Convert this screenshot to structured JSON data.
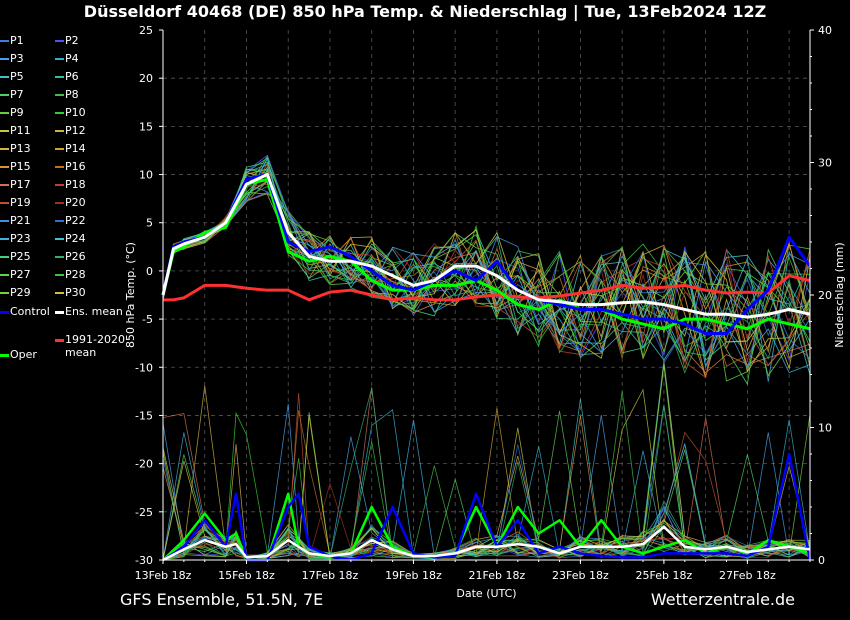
{
  "title": "Düsseldorf 40468 (DE)  850 hPa Temp. & Niederschlag | Tue, 13Feb2024 12Z",
  "footer_left": "GFS Ensemble, 51.5N, 7E",
  "footer_right": "Wetterzentrale.de",
  "colors": {
    "background": "#000000",
    "control": "#0000ff",
    "ens_mean": "#ffffff",
    "climate_mean": "#ff3030",
    "oper": "#00ff00"
  },
  "legend": [
    {
      "label": "P1",
      "color": "#3f7fd8"
    },
    {
      "label": "P2",
      "color": "#5050ff"
    },
    {
      "label": "P3",
      "color": "#4aa0e8"
    },
    {
      "label": "P4",
      "color": "#30b0d0"
    },
    {
      "label": "P5",
      "color": "#40c0c0"
    },
    {
      "label": "P6",
      "color": "#30c0a0"
    },
    {
      "label": "P7",
      "color": "#50d060"
    },
    {
      "label": "P8",
      "color": "#40c040"
    },
    {
      "label": "P9",
      "color": "#60d040"
    },
    {
      "label": "P10",
      "color": "#30d030"
    },
    {
      "label": "P11",
      "color": "#c8c840"
    },
    {
      "label": "P12",
      "color": "#d0b040"
    },
    {
      "label": "P13",
      "color": "#d8b050"
    },
    {
      "label": "P14",
      "color": "#d0a030"
    },
    {
      "label": "P15",
      "color": "#d89040"
    },
    {
      "label": "P16",
      "color": "#c07020"
    },
    {
      "label": "P17",
      "color": "#d07050"
    },
    {
      "label": "P18",
      "color": "#c04030"
    },
    {
      "label": "P19",
      "color": "#c05030"
    },
    {
      "label": "P20",
      "color": "#a03020"
    },
    {
      "label": "P21",
      "color": "#4090e0"
    },
    {
      "label": "P22",
      "color": "#3070d0"
    },
    {
      "label": "P23",
      "color": "#40b0e0"
    },
    {
      "label": "P24",
      "color": "#40c0d0"
    },
    {
      "label": "P25",
      "color": "#40d080"
    },
    {
      "label": "P26",
      "color": "#30b070"
    },
    {
      "label": "P27",
      "color": "#60d050"
    },
    {
      "label": "P28",
      "color": "#40c040"
    },
    {
      "label": "P29",
      "color": "#70d040"
    },
    {
      "label": "P30",
      "color": "#d0c040"
    },
    {
      "label": "Control",
      "color": "#0000ff"
    },
    {
      "label": "Ens. mean",
      "color": "#ffffff"
    },
    {
      "label": "1991-2020 mean",
      "color": "#ff3030"
    },
    {
      "label": "Oper",
      "color": "#00ff00"
    }
  ],
  "chart_data": {
    "type": "line",
    "title": "Düsseldorf 40468 (DE)  850 hPa Temp. & Niederschlag | Tue, 13Feb2024 12Z",
    "xlabel": "Date (UTC)",
    "ylabel": "850 hPa Temp. (°C)",
    "y2label": "Niederschlag (mm)",
    "x_ticks": [
      "13Feb 18z",
      "15Feb 18z",
      "17Feb 18z",
      "19Feb 18z",
      "21Feb 18z",
      "23Feb 18z",
      "25Feb 18z",
      "27Feb 18z"
    ],
    "x_range_days": [
      0,
      15.5
    ],
    "ylim": [
      -30,
      25
    ],
    "yticks": [
      25,
      20,
      15,
      10,
      5,
      0,
      -5,
      -10,
      -15,
      -20,
      -25,
      -30
    ],
    "y2lim": [
      0,
      40
    ],
    "y2ticks": [
      40,
      30,
      20,
      10,
      0
    ],
    "grid": true,
    "legend_position": "left outside",
    "series": [
      {
        "name": "Control",
        "axis": "temp",
        "color": "#0000ff",
        "x": [
          0,
          0.25,
          0.5,
          1,
          1.5,
          2,
          2.5,
          3,
          3.5,
          4,
          4.5,
          5,
          5.5,
          6,
          6.5,
          7,
          7.5,
          8,
          8.5,
          9,
          9.5,
          10,
          10.5,
          11,
          11.5,
          12,
          12.5,
          13,
          13.5,
          14,
          14.5,
          15,
          15.5
        ],
        "values": [
          -2.5,
          2.5,
          3,
          3.5,
          5,
          9.5,
          10,
          3,
          2,
          2.5,
          1.5,
          0,
          -1.5,
          -2,
          -1,
          0,
          -1,
          1,
          -2,
          -3,
          -3.5,
          -4,
          -4,
          -4.5,
          -5,
          -5,
          -5.5,
          -6.5,
          -6.5,
          -4,
          -2,
          3.5,
          0.5
        ]
      },
      {
        "name": "Ens. mean",
        "axis": "temp",
        "color": "#ffffff",
        "x": [
          0,
          0.25,
          0.5,
          1,
          1.5,
          2,
          2.5,
          3,
          3.5,
          4,
          4.5,
          5,
          5.5,
          6,
          6.5,
          7,
          7.5,
          8,
          8.5,
          9,
          9.5,
          10,
          10.5,
          11,
          11.5,
          12,
          12.5,
          13,
          13.5,
          14,
          14.5,
          15,
          15.5
        ],
        "values": [
          -2.5,
          2.3,
          2.8,
          3.5,
          5,
          9,
          10,
          4,
          1.5,
          1,
          1,
          0.5,
          -0.5,
          -1.5,
          -1,
          0.5,
          0.5,
          -0.5,
          -2,
          -3,
          -3.2,
          -3.5,
          -3.5,
          -3.3,
          -3.2,
          -3.5,
          -4,
          -4.5,
          -4.5,
          -4.8,
          -4.5,
          -4,
          -4.5
        ]
      },
      {
        "name": "1991-2020 mean",
        "axis": "temp",
        "color": "#ff3030",
        "x": [
          0,
          0.25,
          0.5,
          1,
          1.5,
          2,
          2.5,
          3,
          3.5,
          4,
          4.5,
          5,
          5.5,
          6,
          6.5,
          7,
          7.5,
          8,
          8.5,
          9,
          9.5,
          10,
          10.5,
          11,
          11.5,
          12,
          12.5,
          13,
          13.5,
          14,
          14.5,
          15,
          15.5
        ],
        "values": [
          -3,
          -3,
          -2.8,
          -1.5,
          -1.5,
          -1.8,
          -2,
          -2,
          -3,
          -2.2,
          -2,
          -2.5,
          -3,
          -2.8,
          -3,
          -3,
          -2.7,
          -2.5,
          -2.7,
          -2.8,
          -2.6,
          -2.3,
          -2,
          -1.5,
          -1.8,
          -1.7,
          -1.5,
          -2,
          -2.3,
          -2.2,
          -2.3,
          -0.5,
          -1
        ]
      },
      {
        "name": "Oper",
        "axis": "temp",
        "color": "#00ff00",
        "x": [
          0,
          0.25,
          0.5,
          1,
          1.5,
          2,
          2.5,
          3,
          3.5,
          4,
          4.5,
          5,
          5.5,
          6,
          6.5,
          7,
          7.5,
          8,
          8.5,
          9,
          9.5,
          10,
          10.5,
          11,
          11.5,
          12,
          12.5,
          13,
          13.5,
          14,
          14.5,
          15,
          15.5
        ],
        "values": [
          -2.5,
          2,
          2.5,
          4,
          4.5,
          9,
          9.5,
          2,
          1,
          1.5,
          1,
          -1,
          -2,
          -2,
          -1.5,
          -1.5,
          -1,
          -2,
          -3.5,
          -4,
          -3,
          -4,
          -4,
          -5,
          -5.5,
          -6,
          -5,
          -5,
          -5.5,
          -6,
          -5,
          -5.5,
          -6
        ]
      },
      {
        "name": "Control",
        "axis": "precip",
        "color": "#0000ff",
        "x": [
          0,
          0.5,
          1,
          1.5,
          1.75,
          2,
          2.5,
          3,
          3.25,
          3.5,
          4,
          4.5,
          5,
          5.5,
          6,
          6.5,
          7,
          7.5,
          8,
          8.5,
          9,
          9.5,
          10,
          10.5,
          11,
          11.5,
          12,
          12.5,
          13,
          13.5,
          14,
          14.5,
          15,
          15.5
        ],
        "values": [
          0,
          1,
          3,
          1,
          5,
          0,
          0,
          4,
          5,
          1,
          0.3,
          0,
          0.5,
          4,
          0.5,
          0.2,
          0.3,
          5,
          1,
          3,
          0.5,
          1,
          0.5,
          0.3,
          0.2,
          0.2,
          0.5,
          0.5,
          0.5,
          0.5,
          0.3,
          1,
          8,
          0
        ]
      },
      {
        "name": "Oper",
        "axis": "precip",
        "color": "#00ff00",
        "x": [
          0,
          0.5,
          1,
          1.5,
          1.75,
          2,
          2.5,
          3,
          3.25,
          3.5,
          4,
          4.5,
          5,
          5.5,
          6,
          6.5,
          7,
          7.5,
          8,
          8.5,
          9,
          9.5,
          10,
          10.5,
          11,
          11.5,
          12,
          12.5,
          13,
          13.5,
          14,
          14.5,
          15,
          15.5
        ],
        "values": [
          0,
          1.5,
          3.5,
          1.5,
          2,
          0,
          0,
          5,
          1,
          0.5,
          0.2,
          0.5,
          4,
          1,
          0.3,
          0.2,
          0.5,
          4,
          1,
          4,
          2,
          3,
          1,
          3,
          1,
          0.5,
          1,
          1.5,
          0.5,
          1,
          0.5,
          1.5,
          1,
          0.5
        ]
      },
      {
        "name": "Ens. mean",
        "axis": "precip",
        "color": "#ffffff",
        "x": [
          0,
          0.5,
          1,
          1.5,
          1.75,
          2,
          2.5,
          3,
          3.25,
          3.5,
          4,
          4.5,
          5,
          5.5,
          6,
          6.5,
          7,
          7.5,
          8,
          8.5,
          9,
          9.5,
          10,
          10.5,
          11,
          11.5,
          12,
          12.5,
          13,
          13.5,
          14,
          14.5,
          15,
          15.5
        ],
        "values": [
          0,
          0.8,
          1.5,
          1,
          1.2,
          0.2,
          0.3,
          1.5,
          1,
          0.5,
          0.3,
          0.5,
          1.5,
          0.8,
          0.3,
          0.3,
          0.5,
          1,
          1,
          1.2,
          1,
          0.5,
          1,
          1,
          1,
          1.2,
          2.5,
          1,
          0.8,
          1,
          0.6,
          0.8,
          1,
          0.8
        ]
      }
    ]
  }
}
